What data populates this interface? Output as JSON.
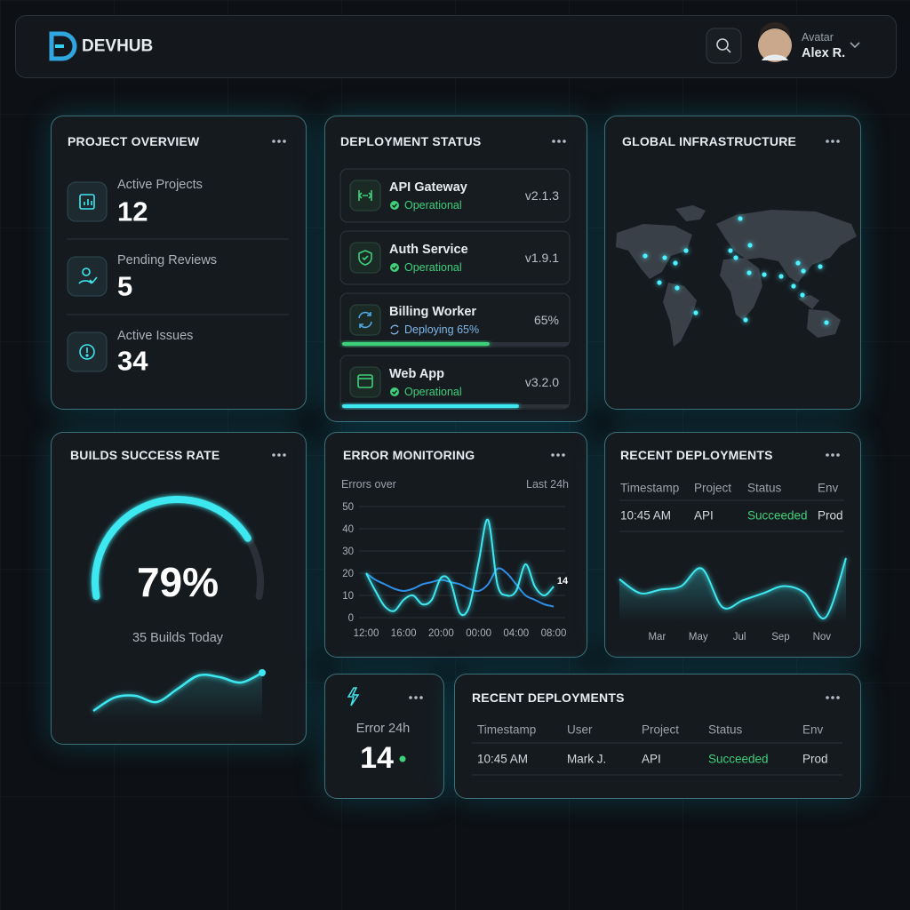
{
  "header": {
    "brand": "DEVHUB",
    "avatar_label": "Avatar",
    "user_name": "Alex R."
  },
  "project_overview": {
    "title": "PROJECT OVERVIEW",
    "items": [
      {
        "label": "Active Projects",
        "value": 12
      },
      {
        "label": "Pending Reviews",
        "value": 5
      },
      {
        "label": "Active Issues",
        "value": 34
      }
    ]
  },
  "deployment_status": {
    "title": "DEPLOYMENT STATUS",
    "services": [
      {
        "name": "API Gateway",
        "status": "Operational",
        "version": "v2.1.3"
      },
      {
        "name": "Auth Service",
        "status": "Operational",
        "version": "v1.9.1"
      },
      {
        "name": "Billing Worker",
        "status": "Deploying 65%",
        "version": "65%",
        "progress": 65
      },
      {
        "name": "Web App",
        "status": "Operational",
        "version": "v3.2.0",
        "progress": 78
      }
    ]
  },
  "global_infrastructure": {
    "title": "GLOBAL INFRASTRUCTURE"
  },
  "builds_success_rate": {
    "title": "BUILDS SUCCESS RATE",
    "value": 79,
    "value_label": "79%",
    "caption": "35 Builds Today",
    "trend": [
      0,
      3,
      3.4,
      2,
      5,
      8,
      7.6,
      6.4,
      8.6
    ]
  },
  "error_monitoring": {
    "title": "ERROR MONITORING",
    "subtitle": "Errors over",
    "period": "Last 24h",
    "chart": {
      "type": "line",
      "x": [
        0,
        1,
        2,
        3,
        4,
        5,
        6,
        7,
        8,
        9,
        10,
        11,
        12,
        13,
        14,
        15,
        16,
        17,
        18,
        19,
        20
      ],
      "xlim": [
        0,
        20
      ],
      "xticks": [
        {
          "value": 0,
          "label": "12:00"
        },
        {
          "value": 4,
          "label": "16:00"
        },
        {
          "value": 8,
          "label": "20:00"
        },
        {
          "value": 12,
          "label": "00:00"
        },
        {
          "value": 16,
          "label": "04:00"
        },
        {
          "value": 20,
          "label": "08:00"
        }
      ],
      "ylim": [
        0,
        50
      ],
      "yticks": [
        0,
        10,
        20,
        30,
        40,
        50
      ],
      "grid": true,
      "series": [
        {
          "color": "#3ee8f0",
          "values": [
            20,
            12,
            5,
            3,
            8,
            10,
            6,
            8,
            18,
            16,
            2,
            5,
            25,
            44,
            15,
            10,
            12,
            24,
            14,
            10,
            14
          ]
        },
        {
          "color": "#2f8fe6",
          "values": [
            20,
            17,
            15,
            13,
            12,
            13,
            15,
            16,
            17,
            16,
            15,
            13,
            12,
            15,
            22,
            20,
            15,
            10,
            8,
            6,
            5
          ]
        }
      ]
    }
  },
  "recent_deployments_card": {
    "title": "RECENT DEPLOYMENTS",
    "columns": [
      "Timestamp",
      "Project",
      "Status",
      "Env"
    ],
    "rows": [
      [
        "10:45 AM",
        "API",
        "Succeeded",
        "Prod"
      ]
    ],
    "chart": {
      "type": "area",
      "color": "#3ee8f0",
      "categories": [
        null,
        null,
        "Mar",
        null,
        "May",
        null,
        "Jul",
        null,
        "Sep",
        null,
        "Nov",
        null
      ],
      "values": [
        6,
        4,
        4.5,
        5,
        7.5,
        2,
        3,
        4,
        5,
        4,
        0.5,
        9
      ]
    }
  },
  "error_24h": {
    "label": "Error 24h",
    "value": 14
  },
  "recent_deployments": {
    "title": "RECENT DEPLOYMENTS",
    "columns": [
      "Timestamp",
      "User",
      "Project",
      "Status",
      "Env"
    ],
    "rows": [
      [
        "10:45 AM",
        "Mark J.",
        "API",
        "Succeeded",
        "Prod"
      ]
    ]
  }
}
